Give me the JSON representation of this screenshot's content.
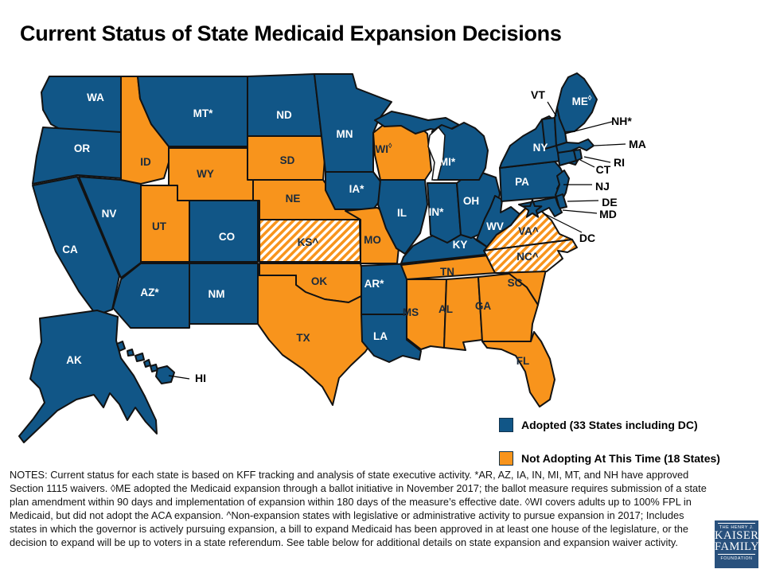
{
  "title": "Current Status of State Medicaid Expansion Decisions",
  "colors": {
    "adopted": "#115687",
    "not_adopting": "#F8941C",
    "border": "#121212",
    "label_on_adopted": "#FFFFFF",
    "label_on_not_adopting": "#1B2B3C",
    "callout_text": "#000000"
  },
  "legend": [
    {
      "key": "adopted",
      "label": "Adopted (33 States including DC)",
      "swatch": "#115687"
    },
    {
      "key": "not_adopting",
      "label": "Not Adopting At This Time (18 States)",
      "swatch": "#F8941C"
    }
  ],
  "map": {
    "states": {
      "WA": {
        "label": "WA",
        "status": "adopted"
      },
      "OR": {
        "label": "OR",
        "status": "adopted"
      },
      "CA": {
        "label": "CA",
        "status": "adopted"
      },
      "NV": {
        "label": "NV",
        "status": "adopted"
      },
      "ID": {
        "label": "ID",
        "status": "not_adopting"
      },
      "MT": {
        "label": "MT*",
        "status": "adopted"
      },
      "WY": {
        "label": "WY",
        "status": "not_adopting"
      },
      "UT": {
        "label": "UT",
        "status": "not_adopting"
      },
      "CO": {
        "label": "CO",
        "status": "adopted"
      },
      "AZ": {
        "label": "AZ*",
        "status": "adopted"
      },
      "NM": {
        "label": "NM",
        "status": "adopted"
      },
      "ND": {
        "label": "ND",
        "status": "adopted"
      },
      "SD": {
        "label": "SD",
        "status": "not_adopting"
      },
      "NE": {
        "label": "NE",
        "status": "not_adopting"
      },
      "KS": {
        "label": "KS^",
        "status": "not_adopting_activity"
      },
      "OK": {
        "label": "OK",
        "status": "not_adopting"
      },
      "TX": {
        "label": "TX",
        "status": "not_adopting"
      },
      "MN": {
        "label": "MN",
        "status": "adopted"
      },
      "IA": {
        "label": "IA*",
        "status": "adopted"
      },
      "MO": {
        "label": "MO",
        "status": "not_adopting"
      },
      "AR": {
        "label": "AR*",
        "status": "adopted"
      },
      "LA": {
        "label": "LA",
        "status": "adopted"
      },
      "WI": {
        "label": "WI",
        "sup": "◊",
        "status": "not_adopting"
      },
      "IL": {
        "label": "IL",
        "status": "adopted"
      },
      "MS": {
        "label": "MS",
        "status": "not_adopting"
      },
      "MI": {
        "label": "MI*",
        "status": "adopted"
      },
      "IN": {
        "label": "IN*",
        "status": "adopted"
      },
      "KY": {
        "label": "KY",
        "status": "adopted"
      },
      "TN": {
        "label": "TN",
        "status": "not_adopting"
      },
      "AL": {
        "label": "AL",
        "status": "not_adopting"
      },
      "GA": {
        "label": "GA",
        "status": "not_adopting"
      },
      "SC": {
        "label": "SC",
        "status": "not_adopting"
      },
      "FL": {
        "label": "FL",
        "status": "not_adopting"
      },
      "OH": {
        "label": "OH",
        "status": "adopted"
      },
      "WV": {
        "label": "WV",
        "status": "adopted"
      },
      "VA": {
        "label": "VA^",
        "status": "not_adopting_activity"
      },
      "NC": {
        "label": "NC^",
        "status": "not_adopting_activity"
      },
      "PA": {
        "label": "PA",
        "status": "adopted"
      },
      "NY": {
        "label": "NY",
        "status": "adopted"
      },
      "ME": {
        "label": "ME",
        "sup": "◊",
        "status": "adopted"
      },
      "VT": {
        "label": "VT",
        "status": "adopted"
      },
      "NH": {
        "label": "NH*",
        "status": "adopted"
      },
      "MA": {
        "label": "MA",
        "status": "adopted"
      },
      "RI": {
        "label": "RI",
        "status": "adopted"
      },
      "CT": {
        "label": "CT",
        "status": "adopted"
      },
      "NJ": {
        "label": "NJ",
        "status": "adopted"
      },
      "DE": {
        "label": "DE",
        "status": "adopted"
      },
      "MD": {
        "label": "MD",
        "status": "adopted"
      },
      "DC": {
        "label": "DC",
        "status": "adopted"
      },
      "AK": {
        "label": "AK",
        "status": "adopted"
      },
      "HI": {
        "label": "HI",
        "status": "adopted"
      }
    }
  },
  "notes": "NOTES: Current status for each state is based on KFF tracking and analysis of state executive activity. *AR, AZ, IA, IN, MI, MT, and NH have approved Section 1115 waivers. ◊ME adopted the Medicaid expansion through a ballot initiative in November 2017; the ballot measure requires submission of a state plan amendment within 90 days and implementation of expansion within 180 days of the measure’s effective date. ◊WI covers adults up to 100% FPL in Medicaid, but did not adopt the ACA expansion. ^Non-expansion states with legislative or administrative activity to pursue expansion in 2017; Includes states in which the governor is actively pursuing expansion, a bill to expand Medicaid has been approved in at least one house of the legislature, or the decision to expand will be up to voters in a state referendum. See table below for additional details on state expansion and expansion waiver activity.",
  "logo": {
    "line1": "THE HENRY J.",
    "line2": "KAISER",
    "line3": "FAMILY",
    "line4": "FOUNDATION"
  }
}
